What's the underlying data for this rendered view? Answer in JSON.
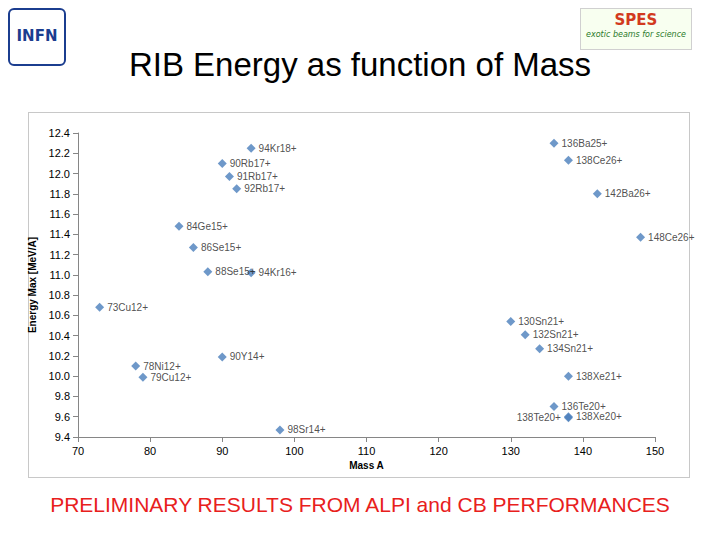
{
  "header": {
    "title": "RIB Energy as function of Mass",
    "logo_left": "INFN",
    "logo_right": "SPES",
    "logo_right_caption": "exotic beams for science"
  },
  "footer": "PRELIMINARY RESULTS FROM ALPI and CB PERFORMANCES",
  "chart_data": {
    "type": "scatter",
    "x_label": "Mass A",
    "y_label": "Energy Max [MeV/A]",
    "x": [
      94,
      90,
      91,
      92,
      84,
      86,
      88,
      94,
      73,
      78,
      79,
      90,
      98,
      136,
      138,
      142,
      148,
      130,
      132,
      134,
      138,
      136,
      138,
      138
    ],
    "values": [
      12.25,
      12.1,
      11.97,
      11.85,
      11.48,
      11.27,
      11.03,
      11.02,
      10.68,
      10.1,
      9.99,
      10.19,
      9.47,
      12.3,
      12.13,
      11.8,
      11.37,
      10.54,
      10.41,
      10.27,
      10.0,
      9.7,
      9.59,
      9.6
    ],
    "point_labels": [
      "94Kr18+",
      "90Rb17+",
      "91Rb17+",
      "92Rb17+",
      "84Ge15+",
      "86Se15+",
      "88Se15+",
      "94Kr16+",
      "73Cu12+",
      "78Ni12+",
      "79Cu12+",
      "90Y14+",
      "98Sr14+",
      "136Ba25+",
      "138Ce26+",
      "142Ba26+",
      "148Ce26+",
      "130Sn21+",
      "132Sn21+",
      "134Sn21+",
      "138Xe21+",
      "136Te20+",
      "138Te20+",
      "138Xe20+"
    ],
    "color": "#4a7ebb",
    "marker": "diamond",
    "xlim": [
      70,
      150
    ],
    "xticks": [
      70,
      80,
      90,
      100,
      110,
      120,
      130,
      140,
      150
    ],
    "ylim": [
      9.4,
      12.4
    ],
    "yticks": [
      9.4,
      9.6,
      9.8,
      {
        "value": 10,
        "label": "10.0"
      },
      10.2,
      10.4,
      10.6,
      10.8,
      {
        "value": 11,
        "label": "11.0"
      },
      11.2,
      11.4,
      11.6,
      11.8,
      {
        "value": 12,
        "label": "12.0"
      },
      12.2,
      12.4
    ],
    "grid": false
  }
}
